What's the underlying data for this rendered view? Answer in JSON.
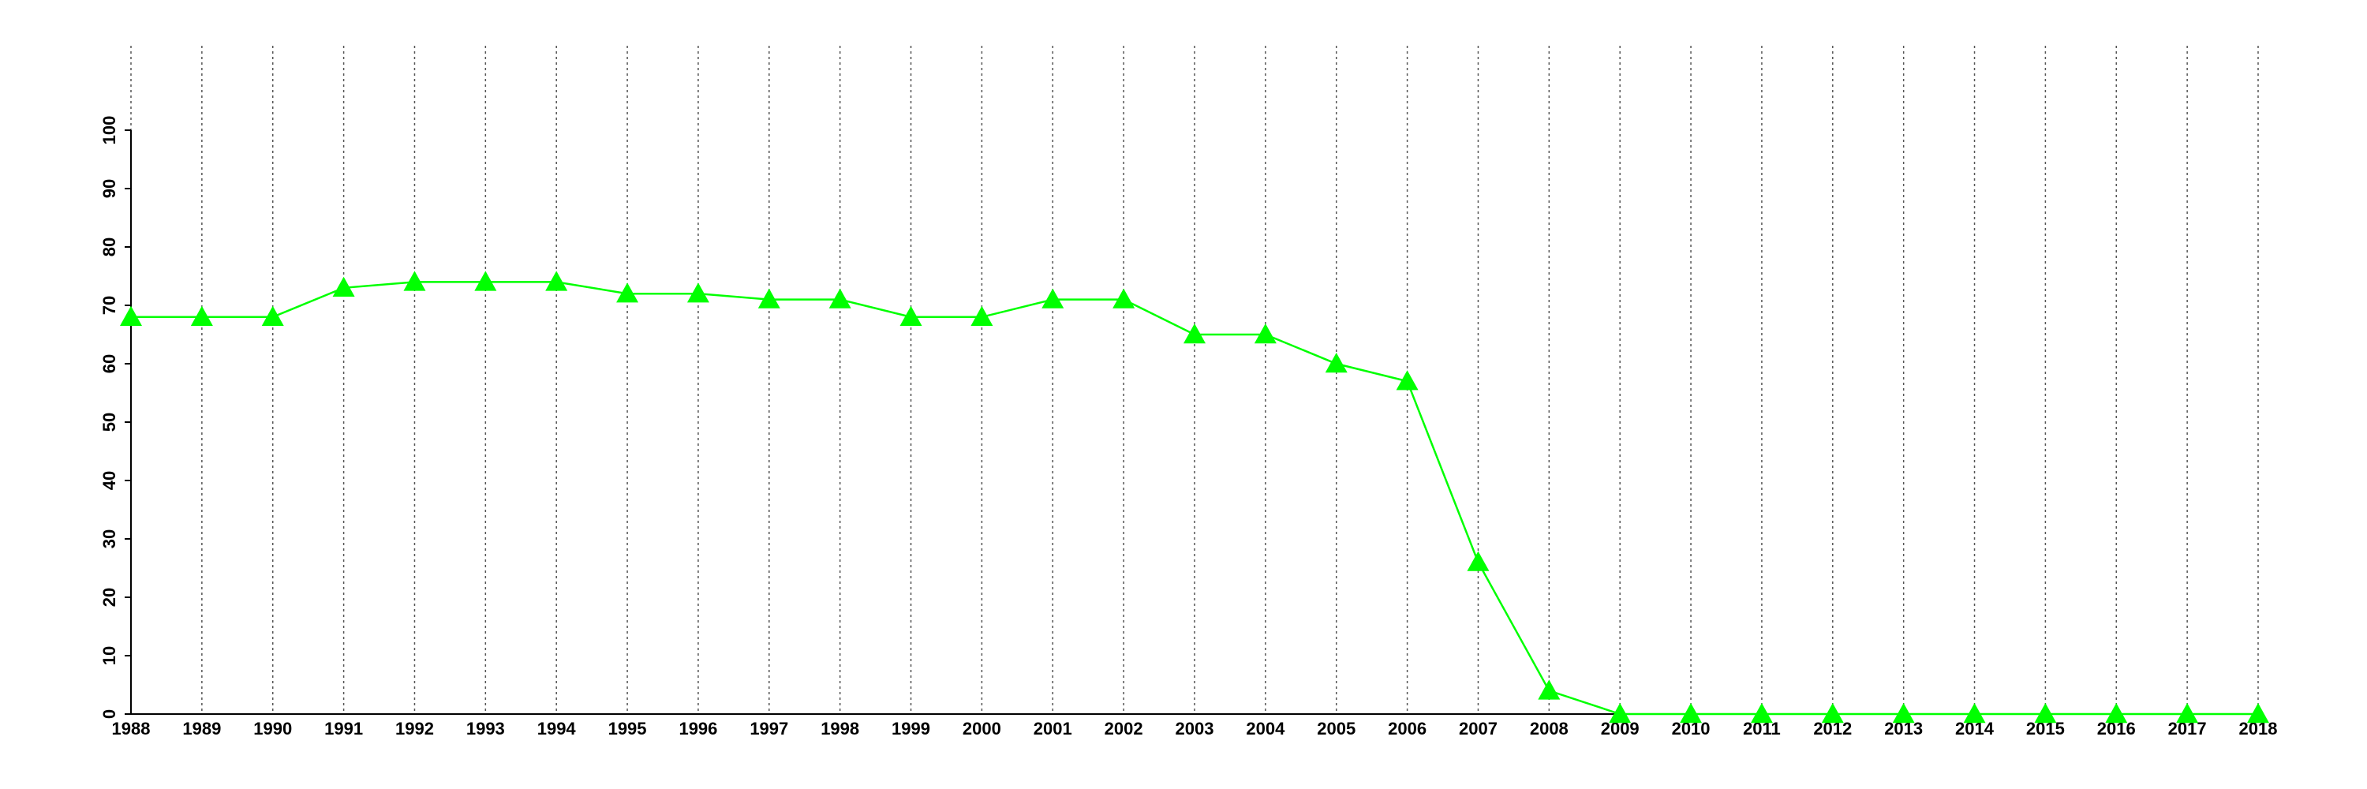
{
  "chart_data": {
    "type": "line",
    "categories": [
      "1988",
      "1989",
      "1990",
      "1991",
      "1992",
      "1993",
      "1994",
      "1995",
      "1996",
      "1997",
      "1998",
      "1999",
      "2000",
      "2001",
      "2002",
      "2003",
      "2004",
      "2005",
      "2006",
      "2007",
      "2008",
      "2009",
      "2010",
      "2011",
      "2012",
      "2013",
      "2014",
      "2015",
      "2016",
      "2017",
      "2018"
    ],
    "values": [
      68,
      68,
      68,
      73,
      74,
      74,
      74,
      72,
      72,
      71,
      71,
      68,
      68,
      71,
      71,
      65,
      65,
      60,
      57,
      26,
      4,
      0,
      0,
      0,
      0,
      0,
      0,
      0,
      0,
      0,
      0
    ],
    "color": "#00ff00",
    "marker": "triangle",
    "ylim": [
      0,
      100
    ],
    "yticks": [
      0,
      10,
      20,
      30,
      40,
      50,
      60,
      70,
      80,
      90,
      100
    ],
    "grid": true
  }
}
